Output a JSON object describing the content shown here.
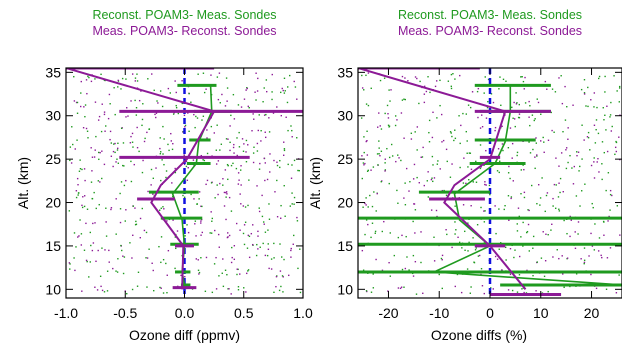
{
  "colors": {
    "green": "#1f9a1f",
    "purple": "#8c1a96",
    "blue": "#1010e0",
    "axis": "#000000"
  },
  "chart_data": [
    {
      "type": "scatter",
      "legend": [
        {
          "name": "Reconst. POAM3- Meas. Sondes",
          "color": "#1f9a1f"
        },
        {
          "name": "Meas. POAM3- Reconst. Sondes",
          "color": "#8c1a96"
        }
      ],
      "xlabel": "Ozone diff (ppmv)",
      "ylabel": "Alt. (km)",
      "xlim": [
        -1.0,
        1.0
      ],
      "ylim": [
        9,
        35.5
      ],
      "xticks": [
        -1.0,
        -0.5,
        0.0,
        0.5,
        1.0
      ],
      "xtick_labels": [
        "-1.0",
        "-0.5",
        "0.0",
        "0.5",
        "1.0"
      ],
      "yticks": [
        10,
        15,
        20,
        25,
        30,
        35
      ],
      "ytick_labels": [
        "10",
        "15",
        "20",
        "25",
        "30",
        "35"
      ],
      "reference_line_x": 0,
      "series": [
        {
          "name": "Reconst. POAM3- Meas. Sondes",
          "mean_profile": {
            "alt": [
              10.5,
              12,
              15,
              18,
              21,
              24.5,
              27,
              30.5,
              33.5
            ],
            "value": [
              0.0,
              -0.02,
              0.0,
              -0.02,
              -0.1,
              0.1,
              0.12,
              0.23,
              0.22
            ]
          },
          "spread_bars": [
            {
              "alt": 33.5,
              "x1": -0.06,
              "x2": 0.27
            },
            {
              "alt": 30.5,
              "x1": 0.08,
              "x2": 0.4
            },
            {
              "alt": 27.2,
              "x1": 0.04,
              "x2": 0.22
            },
            {
              "alt": 24.5,
              "x1": 0.02,
              "x2": 0.22
            },
            {
              "alt": 21.2,
              "x1": -0.3,
              "x2": 0.12
            },
            {
              "alt": 18.2,
              "x1": -0.2,
              "x2": 0.15
            },
            {
              "alt": 15.2,
              "x1": -0.12,
              "x2": 0.12
            },
            {
              "alt": 12.0,
              "x1": -0.08,
              "x2": 0.05
            },
            {
              "alt": 10.5,
              "x1": -0.03,
              "x2": 0.05
            }
          ]
        },
        {
          "name": "Meas. POAM3- Reconst. Sondes",
          "mean_profile": {
            "alt": [
              10,
              15,
              20,
              22,
              25,
              30.5,
              35.5
            ],
            "value": [
              -0.02,
              -0.01,
              -0.28,
              -0.2,
              0.02,
              0.25,
              -1.0
            ]
          },
          "spread_bars": [
            {
              "alt": 35.5,
              "x1": -1.0,
              "x2": 0.25
            },
            {
              "alt": 30.5,
              "x1": -0.55,
              "x2": 1.0
            },
            {
              "alt": 25.2,
              "x1": -0.55,
              "x2": 0.55
            },
            {
              "alt": 20.4,
              "x1": -0.4,
              "x2": -0.08
            },
            {
              "alt": 15.0,
              "x1": -0.08,
              "x2": 0.08
            },
            {
              "alt": 10.2,
              "x1": -0.1,
              "x2": 0.1
            }
          ]
        }
      ]
    },
    {
      "type": "scatter",
      "legend": [
        {
          "name": "Reconst. POAM3- Meas. Sondes",
          "color": "#1f9a1f"
        },
        {
          "name": "Meas. POAM3- Reconst. Sondes",
          "color": "#8c1a96"
        }
      ],
      "xlabel": "Ozone diffs (%)",
      "ylabel": "Alt. (km)",
      "xlim": [
        -26,
        26
      ],
      "ylim": [
        9,
        35.5
      ],
      "xticks": [
        -20,
        -10,
        0,
        10,
        20
      ],
      "xtick_labels": [
        "-20",
        "-10",
        "0",
        "10",
        "20"
      ],
      "yticks": [
        10,
        15,
        20,
        25,
        30,
        35
      ],
      "ytick_labels": [
        "10",
        "15",
        "20",
        "25",
        "30",
        "35"
      ],
      "reference_line_x": 0,
      "series": [
        {
          "name": "Reconst. POAM3- Meas. Sondes",
          "mean_profile": {
            "alt": [
              10.5,
              12,
              15,
              18,
              21,
              24.5,
              27,
              30.5,
              33.5
            ],
            "value": [
              26,
              -11,
              0,
              -6,
              -7,
              1,
              3,
              4,
              4
            ]
          },
          "spread_bars": [
            {
              "alt": 33.5,
              "x1": -3,
              "x2": 12
            },
            {
              "alt": 30.5,
              "x1": -2,
              "x2": 12
            },
            {
              "alt": 27.2,
              "x1": -3,
              "x2": 9
            },
            {
              "alt": 24.5,
              "x1": -4,
              "x2": 7
            },
            {
              "alt": 21.2,
              "x1": -14,
              "x2": 0
            },
            {
              "alt": 18.2,
              "x1": -26,
              "x2": 26
            },
            {
              "alt": 15.2,
              "x1": -26,
              "x2": 26
            },
            {
              "alt": 12.0,
              "x1": -26,
              "x2": 26
            },
            {
              "alt": 10.5,
              "x1": 2,
              "x2": 26
            }
          ]
        },
        {
          "name": "Meas. POAM3- Reconst. Sondes",
          "mean_profile": {
            "alt": [
              10,
              15,
              20,
              22,
              25,
              30.5,
              35.5
            ],
            "value": [
              7,
              0,
              -9,
              -7,
              0,
              3,
              -26
            ]
          },
          "spread_bars": [
            {
              "alt": 35.5,
              "x1": -26,
              "x2": -2
            },
            {
              "alt": 30.5,
              "x1": -3,
              "x2": 12
            },
            {
              "alt": 25.2,
              "x1": -2,
              "x2": 2
            },
            {
              "alt": 20.4,
              "x1": -12,
              "x2": -1
            },
            {
              "alt": 15.0,
              "x1": -3,
              "x2": 3
            },
            {
              "alt": 9.4,
              "x1": 0,
              "x2": 14
            }
          ]
        }
      ]
    }
  ]
}
